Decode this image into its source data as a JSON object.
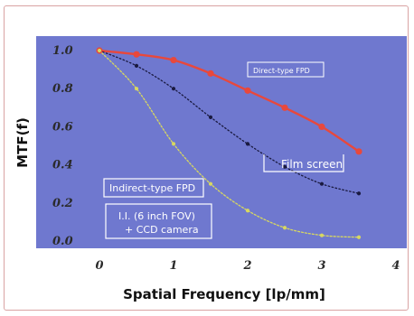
{
  "chart_data": {
    "type": "line",
    "xlabel": "Spatial Frequency [lp/mm]",
    "ylabel": "MTF(f)",
    "xlim": [
      0,
      4
    ],
    "ylim": [
      0,
      1
    ],
    "x_ticks": [
      "0",
      "1",
      "2",
      "3",
      "4"
    ],
    "y_ticks": [
      "0.0",
      "0.2",
      "0.4",
      "0.6",
      "0.8",
      "1.0"
    ],
    "background": "#6f78cf",
    "grid": false,
    "series": [
      {
        "name": "Direct-type FPD",
        "color": "#e8483c",
        "marker": "circle",
        "x": [
          0,
          0.5,
          1.0,
          1.5,
          2.0,
          2.5,
          3.0,
          3.5
        ],
        "y": [
          1.0,
          0.98,
          0.95,
          0.88,
          0.79,
          0.7,
          0.6,
          0.47
        ]
      },
      {
        "name": "Film screen",
        "color": "#1a1a40",
        "marker": "dot",
        "x": [
          0,
          0.5,
          1.0,
          1.5,
          2.0,
          2.5,
          3.0,
          3.5
        ],
        "y": [
          1.0,
          0.92,
          0.8,
          0.65,
          0.51,
          0.39,
          0.3,
          0.25
        ]
      },
      {
        "name": "Indirect-type FPD",
        "color": "#d8d860",
        "marker": "dot",
        "x": [
          0,
          0.5,
          1.0,
          1.5,
          2.0,
          2.5,
          3.0,
          3.5
        ],
        "y": [
          1.0,
          0.8,
          0.51,
          0.3,
          0.16,
          0.07,
          0.03,
          0.02
        ]
      },
      {
        "name": "I.I. (6 inch FOV) + CCD camera",
        "color": "#d8d860",
        "marker": "dot",
        "x": [],
        "y": []
      }
    ],
    "annotations": [
      {
        "text": "Direct-type FPD",
        "series": 0
      },
      {
        "text": "Film screen",
        "series": 1
      },
      {
        "text": "Indirect-type FPD",
        "series": 2
      },
      {
        "text": "I.I. (6 inch FOV)",
        "series": 3
      },
      {
        "text": "+ CCD camera",
        "series": 3
      }
    ]
  }
}
